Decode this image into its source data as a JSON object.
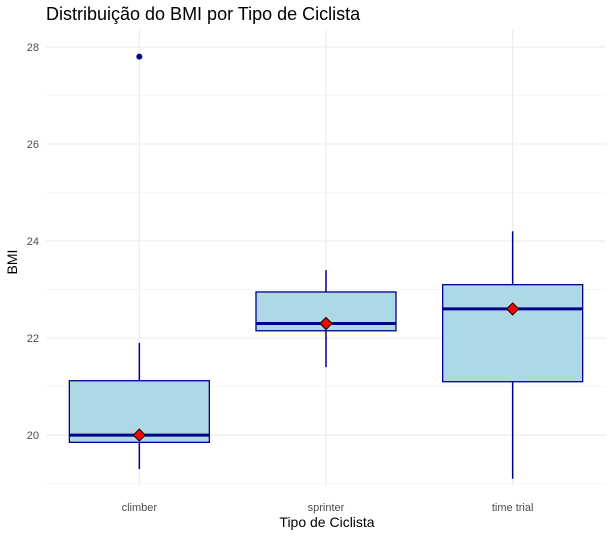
{
  "chart_data": {
    "type": "boxplot",
    "title": "Distribuição do BMI por Tipo de Ciclista",
    "xlabel": "Tipo de Ciclista",
    "ylabel": "BMI",
    "ylim": [
      18.95,
      28.35
    ],
    "yticks": [
      20,
      22,
      24,
      26,
      28
    ],
    "grid": true,
    "legend": "none",
    "categories": [
      "climber",
      "sprinter",
      "time trial"
    ],
    "boxes": [
      {
        "category": "climber",
        "whisker_low": 19.3,
        "q1": 19.85,
        "median": 20.0,
        "q3": 21.12,
        "whisker_high": 21.9,
        "mean": 20.0,
        "outliers": [
          27.8
        ]
      },
      {
        "category": "sprinter",
        "whisker_low": 21.4,
        "q1": 22.15,
        "median": 22.3,
        "q3": 22.95,
        "whisker_high": 23.4,
        "mean": 22.3,
        "outliers": []
      },
      {
        "category": "time trial",
        "whisker_low": 19.1,
        "q1": 21.1,
        "median": 22.6,
        "q3": 23.1,
        "whisker_high": 24.2,
        "mean": 22.6,
        "outliers": []
      }
    ],
    "colors": {
      "box_fill": "#add8e6",
      "box_line": "#00008b",
      "mean_fill": "#ff0000",
      "mean_outline": "#000000",
      "outlier": "#00008b"
    }
  }
}
